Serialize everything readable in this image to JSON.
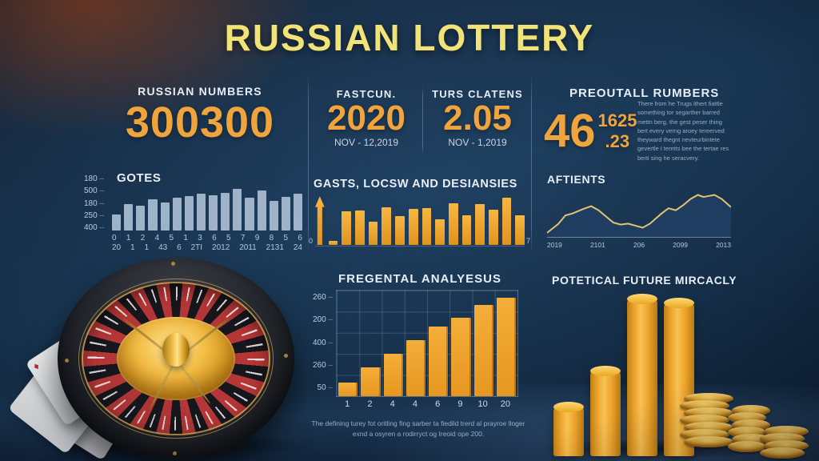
{
  "title": "RUSSIAN LOTTERY",
  "colors": {
    "accent_yellow": "#f1e377",
    "accent_orange": "#f0a43c",
    "bar_blue": "#a9bed2",
    "bar_gold": "#f2a437",
    "line_gold": "#e5c271",
    "area_fill": "#1e3d61",
    "background_navy": "#17304c"
  },
  "left_panel": {
    "label": "RUSSIAN NUMBERS",
    "value": "300300"
  },
  "middle_panel": {
    "stats": [
      {
        "label": "FASTCUN.",
        "value": "2020",
        "sub": "NOV - 12,2019"
      },
      {
        "label": "TURS CLATENS",
        "value": "2.05",
        "sub": "NOV - 1,2019"
      }
    ],
    "footnote": "The defining turey fot oritling fing sarber ta fiedild trerd al prayroe lloger exnd a osyren a rodirryct og Ireoid ope 200."
  },
  "right_panel": {
    "heading": "PREOUTALL RUMBERS",
    "big_value": "46",
    "sup_value": "1625",
    "sub_value": ".23",
    "paragraph": "There from he Trugs ithert fiattle something tor segarther barred mettn berg, the gest peser thing bert every verng aroey tereerved theyward thegnt nevteurbintete gevertle I temtts bee the tertae res berti sing he seracvery.",
    "coin_stacks": [
      7,
      6,
      4
    ]
  },
  "chart_data": [
    {
      "id": "gotes",
      "type": "bar",
      "title": "GOTES",
      "values": [
        30,
        48,
        46,
        57,
        51,
        60,
        63,
        67,
        65,
        69,
        77,
        60,
        74,
        54,
        62,
        68
      ],
      "y_ticks": [
        "180",
        "500",
        "180",
        "250",
        "400"
      ],
      "x_row1": "0 1 2 4 5 1 3 6 5 7 9 8 5 6",
      "x_row2": "20 1 1 43 6 2TI 2012 2011 2131 24",
      "bar_color": "#a9bed2",
      "grid": false,
      "legend": "none"
    },
    {
      "id": "gasts",
      "type": "bar",
      "arrow_first": true,
      "title": "GASTS, LOCSW AND DESIANSIES",
      "values": [
        95,
        8,
        65,
        67,
        45,
        74,
        56,
        70,
        72,
        50,
        82,
        58,
        80,
        68,
        92,
        58
      ],
      "x_min_label": "0",
      "x_max_label": "7",
      "bar_color": "#f2a437",
      "grid": false,
      "legend": "none"
    },
    {
      "id": "fregental",
      "type": "bar",
      "title": "FREGENTAL ANALYESUS",
      "values": [
        13,
        27,
        40,
        53,
        66,
        74,
        86,
        93
      ],
      "x_labels": [
        "1",
        "2",
        "4",
        "4",
        "6",
        "9",
        "10",
        "20"
      ],
      "y_ticks": [
        "260",
        "200",
        "400",
        "260",
        "50"
      ],
      "bar_color": "#f2a437",
      "grid": true,
      "legend": "none"
    },
    {
      "id": "aftients",
      "type": "area",
      "title": "AFTIENTS",
      "points": [
        [
          0,
          8
        ],
        [
          6,
          25
        ],
        [
          10,
          42
        ],
        [
          14,
          46
        ],
        [
          20,
          55
        ],
        [
          24,
          60
        ],
        [
          28,
          52
        ],
        [
          32,
          40
        ],
        [
          36,
          28
        ],
        [
          40,
          24
        ],
        [
          44,
          26
        ],
        [
          48,
          22
        ],
        [
          52,
          18
        ],
        [
          56,
          26
        ],
        [
          62,
          45
        ],
        [
          66,
          56
        ],
        [
          70,
          52
        ],
        [
          74,
          62
        ],
        [
          78,
          74
        ],
        [
          82,
          82
        ],
        [
          85,
          78
        ],
        [
          88,
          80
        ],
        [
          91,
          82
        ],
        [
          95,
          74
        ],
        [
          100,
          58
        ]
      ],
      "x_labels": [
        "2019",
        "2101",
        "206",
        "2099",
        "2013"
      ],
      "line_color": "#e5c271",
      "fill_color": "#1e3d61",
      "grid": false,
      "legend": "none"
    },
    {
      "id": "future",
      "type": "cylinder",
      "title": "POTETICAL FUTURE MIRCACLY",
      "values": [
        62,
        107,
        197,
        192
      ]
    }
  ]
}
